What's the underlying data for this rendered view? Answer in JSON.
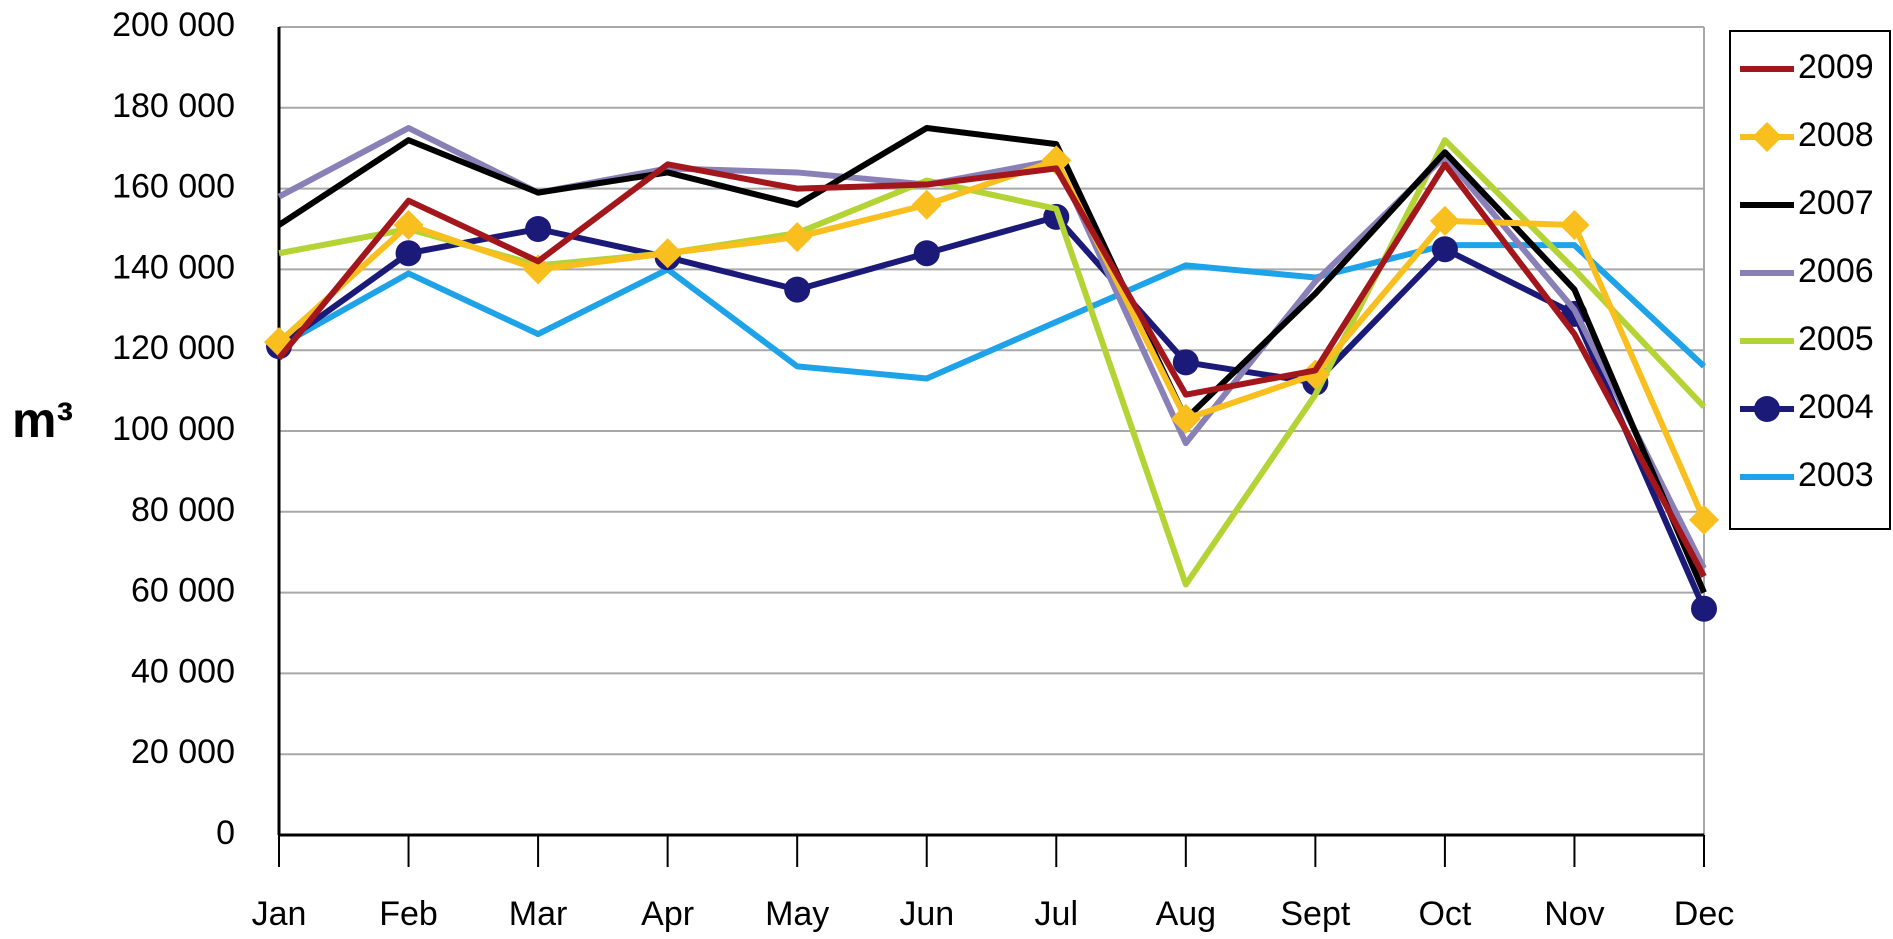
{
  "chart_data": {
    "type": "line",
    "y_label": "m³",
    "categories": [
      "Jan",
      "Feb",
      "Mar",
      "Apr",
      "May",
      "Jun",
      "Jul",
      "Aug",
      "Sept",
      "Oct",
      "Nov",
      "Dec"
    ],
    "series": [
      {
        "name": "2009",
        "color": "#a3161c",
        "marker": "none",
        "values": [
          118000,
          157000,
          142000,
          166000,
          160000,
          161000,
          165000,
          109000,
          115000,
          166000,
          124000,
          64000
        ]
      },
      {
        "name": "2008",
        "color": "#f8bf1f",
        "marker": "diamond",
        "values": [
          122000,
          151000,
          140000,
          144000,
          148000,
          156000,
          167000,
          103000,
          114000,
          152000,
          151000,
          78000
        ]
      },
      {
        "name": "2007",
        "color": "#000000",
        "marker": "none",
        "values": [
          151000,
          172000,
          159000,
          164000,
          156000,
          175000,
          171000,
          103000,
          134000,
          169000,
          135000,
          60000
        ]
      },
      {
        "name": "2006",
        "color": "#8a80b8",
        "marker": "none",
        "values": [
          158000,
          175000,
          159000,
          165000,
          164000,
          161000,
          167000,
          97000,
          137000,
          168000,
          130000,
          66000
        ]
      },
      {
        "name": "2005",
        "color": "#b4d334",
        "marker": "none",
        "values": [
          144000,
          150000,
          141000,
          144000,
          149000,
          162000,
          155000,
          62000,
          109000,
          172000,
          140000,
          106000
        ]
      },
      {
        "name": "2004",
        "color": "#1b1a78",
        "marker": "circle",
        "values": [
          121000,
          144000,
          150000,
          143000,
          135000,
          144000,
          153000,
          117000,
          112000,
          145000,
          129000,
          56000
        ]
      },
      {
        "name": "2003",
        "color": "#1fa3e8",
        "marker": "none",
        "values": [
          121000,
          139000,
          124000,
          140000,
          116000,
          113000,
          127000,
          141000,
          138000,
          146000,
          146000,
          116000
        ]
      }
    ],
    "ylim": [
      0,
      200000
    ],
    "yticks": [
      0,
      {
        "value": 20000,
        "label": "20 000"
      },
      {
        "value": 40000,
        "label": "40 000"
      },
      {
        "value": 60000,
        "label": "60 000"
      },
      {
        "value": 80000,
        "label": "80 000"
      },
      {
        "value": 100000,
        "label": "100 000"
      },
      {
        "value": 120000,
        "label": "120 000"
      },
      {
        "value": 140000,
        "label": "140 000"
      },
      {
        "value": 160000,
        "label": "160 000"
      },
      {
        "value": 180000,
        "label": "180 000"
      },
      {
        "value": 200000,
        "label": "200 000"
      }
    ],
    "grid": true
  }
}
